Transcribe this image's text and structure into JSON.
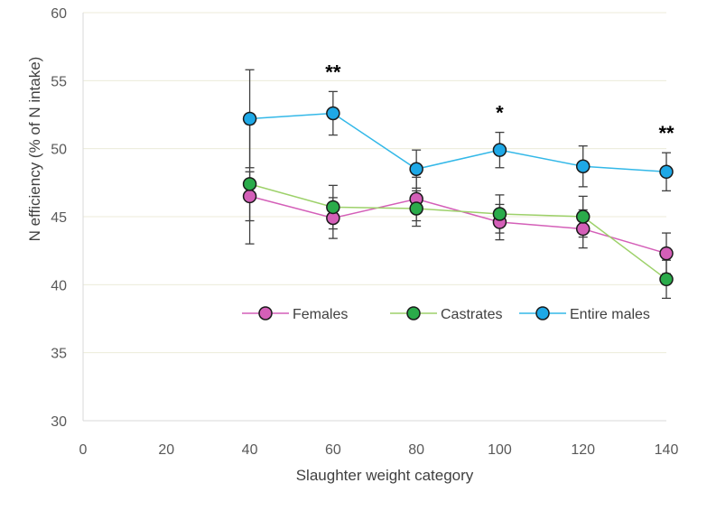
{
  "chart_data": {
    "type": "line",
    "title": "",
    "xlabel": "Slaughter weight category",
    "ylabel": "N efficiency (% of N intake)",
    "xlim": [
      0,
      140
    ],
    "ylim": [
      30,
      60
    ],
    "x_ticks": [
      0,
      20,
      40,
      60,
      80,
      100,
      120,
      140
    ],
    "y_ticks": [
      30,
      35,
      40,
      45,
      50,
      55,
      60
    ],
    "grid": "horizontal",
    "legend_position": "inside-lower-right",
    "x": [
      40,
      60,
      80,
      100,
      120,
      140
    ],
    "series": [
      {
        "name": "Females",
        "line_color": "#d45fb8",
        "marker_color": "#d45fb8",
        "values": [
          46.5,
          44.9,
          46.3,
          44.6,
          44.1,
          42.3
        ],
        "error": [
          1.8,
          1.5,
          1.6,
          1.3,
          1.4,
          1.5
        ]
      },
      {
        "name": "Castrates",
        "line_color": "#9dd16a",
        "marker_color": "#2aab4a",
        "values": [
          47.4,
          45.7,
          45.6,
          45.2,
          45.0,
          40.4
        ],
        "error": [
          4.4,
          1.6,
          1.3,
          1.4,
          1.5,
          1.4
        ]
      },
      {
        "name": "Entire males",
        "line_color": "#33b8e8",
        "marker_color": "#1ea8e6",
        "values": [
          52.2,
          52.6,
          48.5,
          49.9,
          48.7,
          48.3
        ],
        "error": [
          3.6,
          1.6,
          1.4,
          1.3,
          1.5,
          1.4
        ]
      }
    ],
    "annotations": [
      {
        "x": 60,
        "text": "**"
      },
      {
        "x": 100,
        "text": "*"
      },
      {
        "x": 140,
        "text": "**"
      }
    ]
  }
}
